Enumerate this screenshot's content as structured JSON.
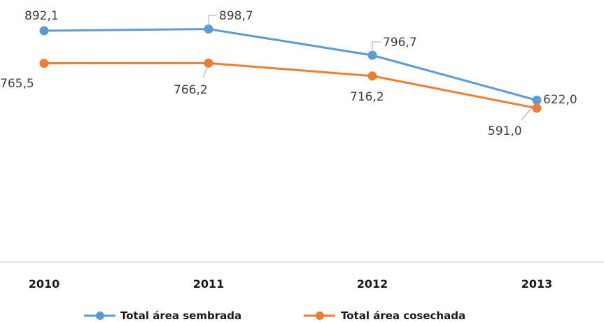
{
  "chart_data": {
    "type": "line",
    "categories": [
      "2010",
      "2011",
      "2012",
      "2013"
    ],
    "series": [
      {
        "name": "Total área sembrada",
        "color": "#5b9bd5",
        "values": [
          892.1,
          898.7,
          796.7,
          622.0
        ],
        "labels": [
          "892,1",
          "898,7",
          "796,7",
          "622,0"
        ]
      },
      {
        "name": "Total área  cosechada",
        "color": "#ed7d31",
        "values": [
          765.5,
          766.2,
          716.2,
          591.0
        ],
        "labels": [
          "765,5",
          "766,2",
          "716,2",
          "591,0"
        ]
      }
    ],
    "grid": false,
    "legend": "bottom",
    "axis_color": "#d9d9d9"
  }
}
